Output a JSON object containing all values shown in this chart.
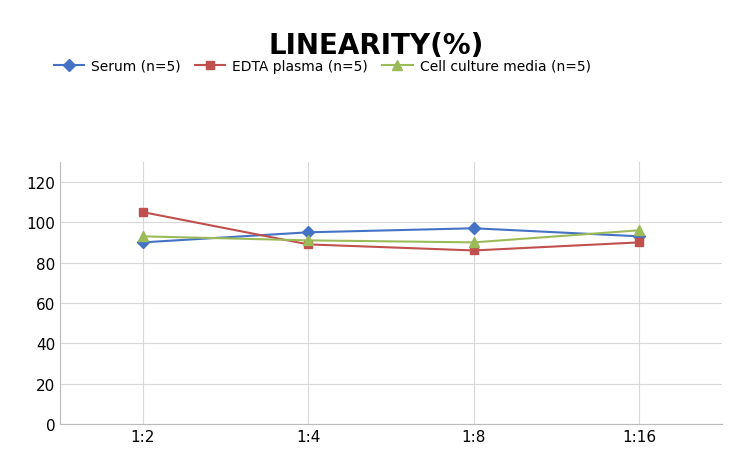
{
  "title": "LINEARITY(%)",
  "x_labels": [
    "1:2",
    "1:4",
    "1:8",
    "1:16"
  ],
  "series": [
    {
      "name": "Serum (n=5)",
      "values": [
        90,
        95,
        97,
        93
      ],
      "color": "#4472C4",
      "marker": "D",
      "marker_size": 6,
      "linewidth": 1.5
    },
    {
      "name": "EDTA plasma (n=5)",
      "values": [
        105,
        89,
        86,
        90
      ],
      "color": "#C0504D",
      "marker": "s",
      "marker_size": 6,
      "linewidth": 1.5
    },
    {
      "name": "Cell culture media (n=5)",
      "values": [
        93,
        91,
        90,
        96
      ],
      "color": "#9BBB59",
      "marker": "^",
      "marker_size": 7,
      "linewidth": 1.5
    }
  ],
  "ylim": [
    0,
    130
  ],
  "yticks": [
    0,
    20,
    40,
    60,
    80,
    100,
    120
  ],
  "title_fontsize": 20,
  "legend_fontsize": 10,
  "tick_fontsize": 11,
  "background_color": "#ffffff",
  "grid_color": "#d8d8d8",
  "title_fontweight": "bold",
  "title_fontstyle": "normal"
}
